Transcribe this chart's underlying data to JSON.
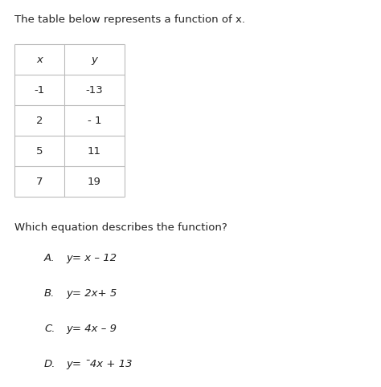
{
  "background_color": "#ffffff",
  "title_text": "The table below represents a function of x.",
  "title_fontsize": 9.5,
  "title_color": "#222222",
  "table_headers": [
    "x",
    "y"
  ],
  "table_data": [
    [
      "-1",
      "-13"
    ],
    [
      "2",
      "- 1"
    ],
    [
      "5",
      "11"
    ],
    [
      "7",
      "19"
    ]
  ],
  "table_header_fontsize": 9.5,
  "table_data_fontsize": 9.5,
  "question_text": "Which equation describes the function?",
  "question_fontsize": 9.5,
  "question_color": "#222222",
  "options": [
    {
      "label": "A.",
      "eq": "y= x – 12"
    },
    {
      "label": "B.",
      "eq": "y= 2x+ 5"
    },
    {
      "label": "C.",
      "eq": "y= 4x – 9"
    },
    {
      "label": "D.",
      "eq": "y= ¯4x + 13"
    }
  ],
  "option_fontsize": 9.5,
  "option_color": "#222222",
  "table_border_color": "#bbbbbb",
  "table_border_lw": 0.8,
  "fig_width": 4.74,
  "fig_height": 4.82,
  "dpi": 100
}
